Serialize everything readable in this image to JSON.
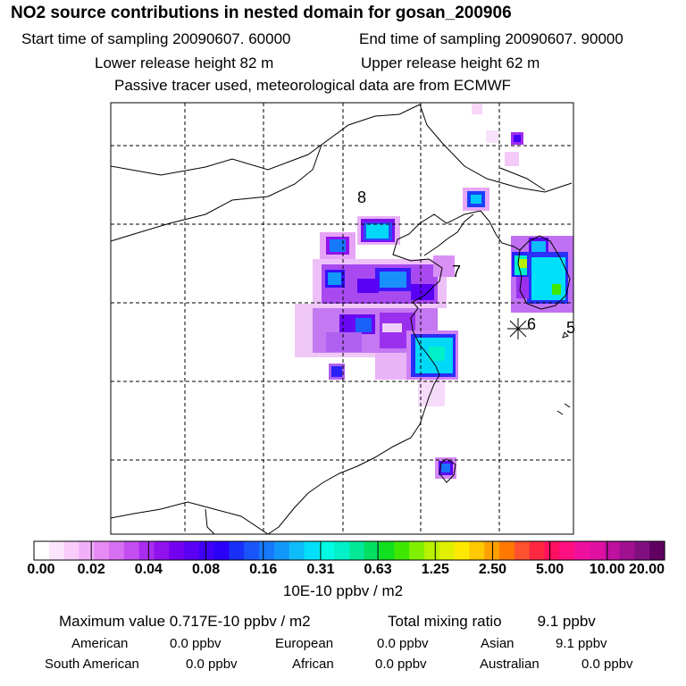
{
  "header": {
    "title": "NO2 source contributions in nested domain for gosan_200906",
    "start_time": "Start time of sampling 20090607. 60000",
    "end_time": "End time of sampling 20090607. 90000",
    "lower_height": "Lower release height   82 m",
    "upper_height": "Upper release height   62 m",
    "tracer_note": "Passive tracer used, meteorological data are from ECMWF"
  },
  "map": {
    "markers": [
      "8",
      "7",
      "6",
      "5"
    ],
    "station_symbol": "asterisk-star"
  },
  "colorbar": {
    "tick_labels": [
      "0.00",
      "0.02",
      "0.04",
      "0.08",
      "0.16",
      "0.31",
      "0.63",
      "1.25",
      "2.50",
      "5.00",
      "10.00",
      "20.00"
    ],
    "colors": [
      "#ffffff",
      "#fde6fd",
      "#f9ccfb",
      "#f2b0fa",
      "#e68af5",
      "#d66ff2",
      "#c24ef0",
      "#aa2cee",
      "#8f12ee",
      "#7400f2",
      "#5a00f5",
      "#4000f8",
      "#2a00fa",
      "#1930fa",
      "#1a55fa",
      "#1679fa",
      "#1298fa",
      "#0ebcfa",
      "#00e0fa",
      "#00fae4",
      "#00f0c8",
      "#00e898",
      "#00e060",
      "#10e020",
      "#40e800",
      "#80f000",
      "#b8f000",
      "#e0f000",
      "#ffe800",
      "#ffc800",
      "#ffa000",
      "#ff7800",
      "#ff5030",
      "#ff2840",
      "#ff1060",
      "#ff1080",
      "#f010a0",
      "#e010a0",
      "#c010a0",
      "#a01090",
      "#801080",
      "#600060"
    ],
    "unit": "10E-10 ppbv / m2"
  },
  "summary": {
    "max_label": "Maximum value  0.717E-10 ppbv / m2",
    "total_label": "Total mixing ratio",
    "total_value": "9.1 ppbv",
    "regions": [
      {
        "name": "American",
        "value": "0.0 ppbv"
      },
      {
        "name": "European",
        "value": "0.0 ppbv"
      },
      {
        "name": "Asian",
        "value": "9.1 ppbv"
      },
      {
        "name": "South American",
        "value": "0.0 ppbv"
      },
      {
        "name": "African",
        "value": "0.0 ppbv"
      },
      {
        "name": "Australian",
        "value": "0.0 ppbv"
      }
    ]
  }
}
